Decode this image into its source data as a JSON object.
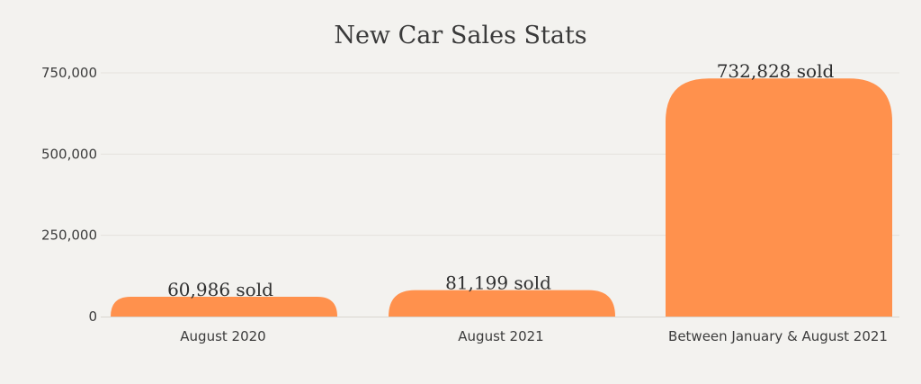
{
  "chart_data": {
    "type": "bar",
    "title": "New Car Sales Stats",
    "categories": [
      "August 2020",
      "August 2021",
      "Between January & August 2021"
    ],
    "values": [
      60986,
      81199,
      732828
    ],
    "data_labels": [
      "60,986 sold",
      "81,199 sold",
      "732,828 sold"
    ],
    "yticks": [
      0,
      250000,
      500000,
      750000
    ],
    "ytick_labels": [
      "0",
      "250,000",
      "500,000",
      "750,000"
    ],
    "ylim": [
      0,
      750000
    ],
    "grid": true,
    "legend": "none",
    "colors": {
      "bar": "#ff914d",
      "background": "#f3f2ef",
      "text": "#3a3a3a"
    }
  }
}
